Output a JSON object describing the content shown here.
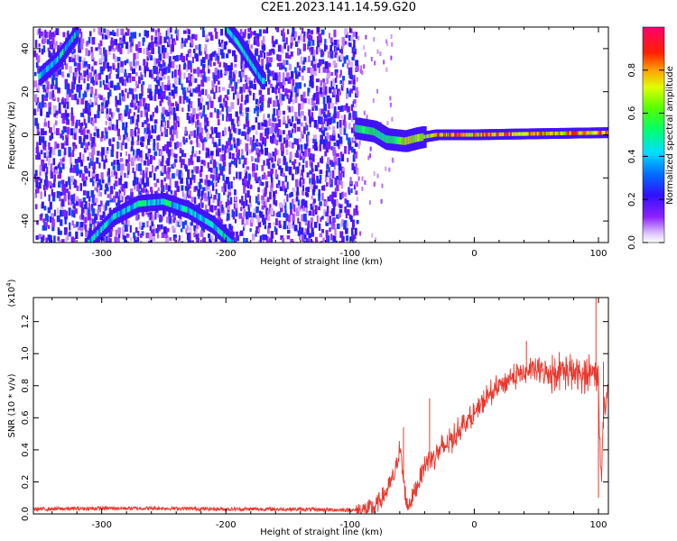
{
  "title": "C2E1.2023.141.14.59.G20",
  "chart_data": [
    {
      "type": "heatmap",
      "xlabel": "Height of straight line (km)",
      "ylabel": "Frequency (Hz)",
      "xlim": [
        -355,
        108
      ],
      "ylim": [
        -50,
        50
      ],
      "xticks": [
        "-300",
        "-200",
        "-100",
        "0",
        "100"
      ],
      "yticks": [
        "-40",
        "-20",
        "0",
        "20",
        "40"
      ],
      "colorbar": {
        "label": "Normalized spectral amplitude",
        "range": [
          0,
          1
        ],
        "ticks": [
          "0.0",
          "0.2",
          "0.4",
          "0.6",
          "0.8"
        ]
      },
      "features": [
        {
          "feature": "broadband noise",
          "x_range": [
            -355,
            -95
          ],
          "amplitude": 0.15
        },
        {
          "feature": "spectral trace",
          "points": [
            [
              -95,
              3
            ],
            [
              -80,
              1.5
            ],
            [
              -70,
              -2
            ],
            [
              -55,
              -3
            ],
            [
              -45,
              -1.5
            ],
            [
              -30,
              0
            ],
            [
              0,
              0
            ],
            [
              50,
              0.5
            ],
            [
              108,
              1
            ]
          ]
        },
        {
          "feature": "upper arc",
          "points": [
            [
              -350,
              27
            ],
            [
              -335,
              35
            ],
            [
              -320,
              47
            ]
          ]
        },
        {
          "feature": "upper arc",
          "points": [
            [
              -200,
              50
            ],
            [
              -190,
              43
            ],
            [
              -180,
              34
            ],
            [
              -170,
              25
            ]
          ]
        },
        {
          "feature": "lower arc",
          "points": [
            [
              -310,
              -50
            ],
            [
              -290,
              -38
            ],
            [
              -270,
              -32
            ],
            [
              -250,
              -31
            ],
            [
              -230,
              -35
            ],
            [
              -210,
              -42
            ],
            [
              -195,
              -50
            ]
          ]
        }
      ]
    },
    {
      "type": "line",
      "xlabel": "Height of straight line (km)",
      "ylabel": "SNR (10 * v/v)",
      "scale_label": "(x10",
      "scale_exponent": "4",
      "scale_suffix": ")",
      "xlim": [
        -355,
        108
      ],
      "ylim": [
        0,
        1.35
      ],
      "xticks": [
        "-300",
        "-200",
        "-100",
        "0",
        "100"
      ],
      "yticks": [
        "0.0",
        "0.2",
        "0.4",
        "0.6",
        "0.8",
        "1.0",
        "1.2"
      ],
      "series": [
        {
          "color": "#e8392f",
          "x": [
            -355,
            -300,
            -250,
            -200,
            -150,
            -110,
            -100,
            -90,
            -80,
            -70,
            -64,
            -60,
            -57,
            -54,
            -50,
            -45,
            -40,
            -35,
            -30,
            -20,
            -10,
            0,
            10,
            20,
            30,
            40,
            50,
            60,
            70,
            80,
            90,
            95,
            100,
            102,
            105,
            108
          ],
          "y": [
            0.03,
            0.035,
            0.035,
            0.03,
            0.03,
            0.025,
            0.025,
            0.02,
            0.04,
            0.15,
            0.25,
            0.42,
            0.2,
            0.05,
            0.1,
            0.2,
            0.3,
            0.35,
            0.38,
            0.45,
            0.55,
            0.62,
            0.72,
            0.8,
            0.85,
            0.88,
            0.9,
            0.88,
            0.9,
            0.87,
            0.86,
            0.9,
            0.85,
            0.2,
            0.7,
            0.78
          ]
        }
      ],
      "peaks": [
        [
          -57,
          0.54
        ],
        [
          -36,
          0.72
        ],
        [
          42,
          1.08
        ],
        [
          98,
          1.35
        ],
        [
          100,
          0.1
        ],
        [
          104,
          0.95
        ]
      ]
    }
  ]
}
